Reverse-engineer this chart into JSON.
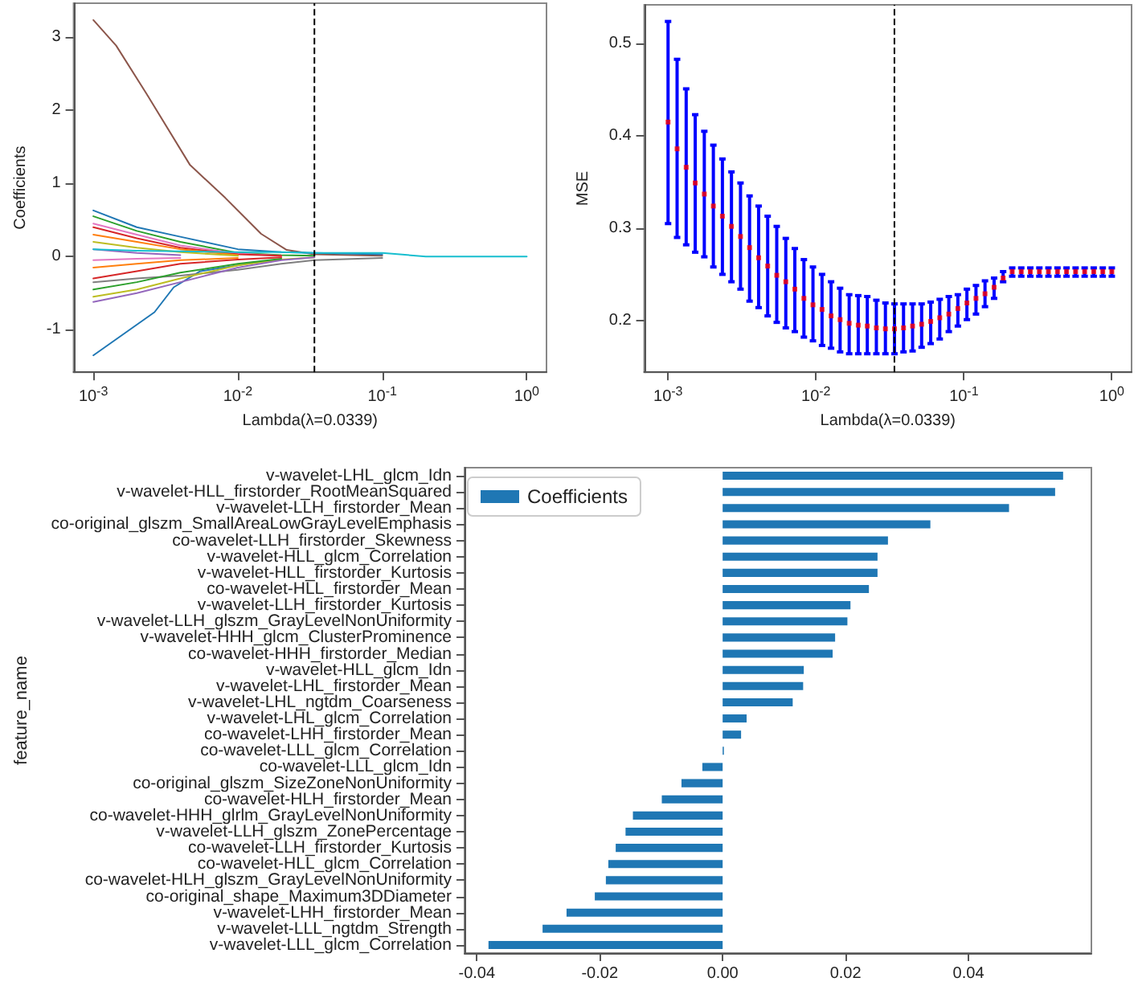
{
  "chart_data": [
    {
      "type": "line",
      "xlabel": "Lambda(λ=0.0339)",
      "ylabel": "Coefficients",
      "log": "x",
      "xlim": [
        0.00073,
        1.37
      ],
      "xticks": [
        {
          "value": 0.001,
          "label": "10$^{-3}$"
        },
        {
          "value": 0.01,
          "label": "10$^{-2}$"
        },
        {
          "value": 0.1,
          "label": "10$^{-1}$"
        },
        {
          "value": 1,
          "label": "10$^{0}$"
        }
      ],
      "ylim": [
        -1.58,
        3.46
      ],
      "yticks": [
        -1,
        0,
        1,
        2,
        3
      ],
      "x": [
        0.001,
        0.002,
        0.004,
        0.01,
        0.02,
        0.0339,
        0.1,
        0.2,
        1
      ],
      "series": [
        {
          "color": "#8c564b",
          "x": [
            0.001,
            0.00144,
            0.00234,
            0.00467,
            0.0082,
            0.0145,
            0.0218,
            0.0339,
            0.1
          ],
          "values": [
            3.23,
            2.88,
            2.22,
            1.25,
            0.8,
            0.31,
            0.09,
            0.03,
            0.01
          ]
        },
        {
          "color": "#1f77b4",
          "x": [
            0.001,
            0.00265,
            0.0036,
            0.0055,
            0.0145
          ],
          "values": [
            -1.35,
            -0.76,
            -0.42,
            -0.2,
            -0.07
          ]
        },
        {
          "color": "#1f77b4",
          "values": [
            0.63,
            0.4,
            0.27,
            0.1,
            0.06,
            0.05,
            0.03,
            null,
            null
          ]
        },
        {
          "color": "#2ca02c",
          "values": [
            0.55,
            0.35,
            0.2,
            0.05,
            0.02,
            0.01,
            null,
            null,
            null
          ]
        },
        {
          "color": "#e377c2",
          "values": [
            0.45,
            0.3,
            0.15,
            0.04,
            0.01,
            null,
            null,
            null,
            null
          ]
        },
        {
          "color": "#d62728",
          "values": [
            0.4,
            0.25,
            0.12,
            0.03,
            0.01,
            null,
            null,
            null,
            null
          ]
        },
        {
          "color": "#ff7f0e",
          "values": [
            0.3,
            0.2,
            0.1,
            0.02,
            null,
            null,
            null,
            null,
            null
          ]
        },
        {
          "color": "#bcbd22",
          "values": [
            0.2,
            0.12,
            0.06,
            0.01,
            null,
            null,
            null,
            null,
            null
          ]
        },
        {
          "color": "#9467bd",
          "values": [
            0.1,
            0.05,
            0.02,
            null,
            null,
            null,
            null,
            null,
            null
          ]
        },
        {
          "color": "#7f7f7f",
          "values": [
            -0.35,
            -0.3,
            -0.26,
            -0.18,
            -0.1,
            -0.05,
            -0.02,
            null,
            null
          ]
        },
        {
          "color": "#bcbd22",
          "values": [
            -0.55,
            -0.45,
            -0.3,
            -0.12,
            -0.04,
            -0.01,
            null,
            null,
            null
          ]
        },
        {
          "color": "#9467bd",
          "values": [
            -0.62,
            -0.5,
            -0.35,
            -0.15,
            -0.05,
            -0.01,
            null,
            null,
            null
          ]
        },
        {
          "color": "#2ca02c",
          "values": [
            -0.45,
            -0.35,
            -0.22,
            -0.1,
            -0.03,
            null,
            null,
            null,
            null
          ]
        },
        {
          "color": "#d62728",
          "values": [
            -0.3,
            -0.2,
            -0.1,
            -0.04,
            -0.01,
            null,
            null,
            null,
            null
          ]
        },
        {
          "color": "#ff7f0e",
          "values": [
            -0.15,
            -0.1,
            -0.05,
            -0.02,
            null,
            null,
            null,
            null,
            null
          ]
        },
        {
          "color": "#e377c2",
          "values": [
            -0.05,
            -0.03,
            -0.02,
            null,
            null,
            null,
            null,
            null,
            null
          ]
        },
        {
          "color": "#17becf",
          "values": [
            0.1,
            0.08,
            0.07,
            0.06,
            0.06,
            0.05,
            0.05,
            0,
            0
          ]
        }
      ],
      "ref_lines": [
        {
          "axis": "x",
          "value": 0.0339,
          "color": "#000000",
          "line_style": "dashed"
        }
      ]
    },
    {
      "type": "scatter",
      "xlabel": "Lambda(λ=0.0339)",
      "ylabel": "MSE",
      "log": "x",
      "marker": "square",
      "color": "#ff0000",
      "xlim": [
        0.00069,
        1.36
      ],
      "xticks": [
        {
          "value": 0.001,
          "label": "10$^{-3}$"
        },
        {
          "value": 0.01,
          "label": "10$^{-2}$"
        },
        {
          "value": 0.1,
          "label": "10$^{-1}$"
        },
        {
          "value": 1,
          "label": "10$^{0}$"
        }
      ],
      "ylim": [
        0.144,
        0.542
      ],
      "yticks": [
        0.2,
        0.3,
        0.4,
        0.5
      ],
      "x": [
        0.001,
        0.001151,
        0.001326,
        0.001526,
        0.001758,
        0.002024,
        0.00233,
        0.002683,
        0.003089,
        0.003556,
        0.004095,
        0.004715,
        0.005429,
        0.006251,
        0.007197,
        0.008286,
        0.009541,
        0.01099,
        0.01265,
        0.01456,
        0.01677,
        0.01931,
        0.02223,
        0.0256,
        0.02947,
        0.03393,
        0.03907,
        0.04498,
        0.05179,
        0.05964,
        0.06866,
        0.07906,
        0.09103,
        0.1048,
        0.1207,
        0.1389,
        0.16,
        0.1842,
        0.2121,
        0.2442,
        0.2812,
        0.3237,
        0.3728,
        0.4292,
        0.4942,
        0.569,
        0.6551,
        0.7543,
        0.8685,
        1
      ],
      "values": [
        0.415,
        0.386,
        0.366,
        0.349,
        0.337,
        0.324,
        0.313,
        0.302,
        0.291,
        0.279,
        0.268,
        0.259,
        0.249,
        0.242,
        0.234,
        0.224,
        0.217,
        0.212,
        0.205,
        0.201,
        0.197,
        0.195,
        0.194,
        0.192,
        0.191,
        0.191,
        0.192,
        0.194,
        0.196,
        0.199,
        0.203,
        0.207,
        0.213,
        0.219,
        0.224,
        0.229,
        0.236,
        0.246,
        0.253,
        0.253,
        0.253,
        0.253,
        0.253,
        0.253,
        0.253,
        0.253,
        0.253,
        0.253,
        0.253,
        0.253
      ],
      "errors": [
        [
          0.305,
          0.524
        ],
        [
          0.29,
          0.483
        ],
        [
          0.282,
          0.451
        ],
        [
          0.274,
          0.423
        ],
        [
          0.269,
          0.405
        ],
        [
          0.258,
          0.39
        ],
        [
          0.25,
          0.375
        ],
        [
          0.242,
          0.361
        ],
        [
          0.234,
          0.349
        ],
        [
          0.221,
          0.335
        ],
        [
          0.214,
          0.324
        ],
        [
          0.205,
          0.313
        ],
        [
          0.198,
          0.302
        ],
        [
          0.192,
          0.289
        ],
        [
          0.188,
          0.278
        ],
        [
          0.182,
          0.266
        ],
        [
          0.178,
          0.258
        ],
        [
          0.173,
          0.25
        ],
        [
          0.17,
          0.242
        ],
        [
          0.166,
          0.235
        ],
        [
          0.164,
          0.228
        ],
        [
          0.164,
          0.227
        ],
        [
          0.164,
          0.226
        ],
        [
          0.164,
          0.222
        ],
        [
          0.164,
          0.219
        ],
        [
          0.164,
          0.218
        ],
        [
          0.166,
          0.218
        ],
        [
          0.167,
          0.218
        ],
        [
          0.171,
          0.218
        ],
        [
          0.175,
          0.22
        ],
        [
          0.18,
          0.223
        ],
        [
          0.188,
          0.226
        ],
        [
          0.194,
          0.228
        ],
        [
          0.201,
          0.234
        ],
        [
          0.207,
          0.238
        ],
        [
          0.215,
          0.243
        ],
        [
          0.224,
          0.246
        ],
        [
          0.242,
          0.253
        ],
        [
          0.248,
          0.257
        ],
        [
          0.248,
          0.257
        ],
        [
          0.248,
          0.257
        ],
        [
          0.248,
          0.257
        ],
        [
          0.248,
          0.257
        ],
        [
          0.248,
          0.257
        ],
        [
          0.248,
          0.257
        ],
        [
          0.248,
          0.257
        ],
        [
          0.248,
          0.257
        ],
        [
          0.248,
          0.257
        ],
        [
          0.248,
          0.257
        ],
        [
          0.248,
          0.257
        ]
      ],
      "ref_lines": [
        {
          "axis": "x",
          "value": 0.0339,
          "color": "#000000",
          "line_style": "dashed"
        }
      ]
    },
    {
      "type": "bar",
      "orientation": "horizontal",
      "ylabel": "feature_name",
      "legend": "top left",
      "xlim": [
        -0.042,
        0.06
      ],
      "xticks": [
        -0.04,
        -0.02,
        {
          "value": 0,
          "label": "0.00"
        },
        0.02,
        0.04
      ],
      "categories": [
        "v-wavelet-LHL_glcm_Idn",
        "v-wavelet-HLL_firstorder_RootMeanSquared",
        "v-wavelet-LLH_firstorder_Mean",
        "co-original_glszm_SmallAreaLowGrayLevelEmphasis",
        "co-wavelet-LLH_firstorder_Skewness",
        "v-wavelet-HLL_glcm_Correlation",
        "v-wavelet-HLL_firstorder_Kurtosis",
        "co-wavelet-HLL_firstorder_Mean",
        "v-wavelet-LLH_firstorder_Kurtosis",
        "v-wavelet-LLH_glszm_GrayLevelNonUniformity",
        "v-wavelet-HHH_glcm_ClusterProminence",
        "co-wavelet-HHH_firstorder_Median",
        "v-wavelet-HLL_glcm_Idn",
        "v-wavelet-LHL_firstorder_Mean",
        "v-wavelet-LHL_ngtdm_Coarseness",
        "v-wavelet-LHL_glcm_Correlation",
        "co-wavelet-LHH_firstorder_Mean",
        "co-wavelet-LLL_glcm_Correlation",
        "co-wavelet-LLL_glcm_Idn",
        "co-original_glszm_SizeZoneNonUniformity",
        "co-wavelet-HLH_firstorder_Mean",
        "co-wavelet-HHH_glrlm_GrayLevelNonUniformity",
        "v-wavelet-LLH_glszm_ZonePercentage",
        "co-wavelet-LLH_firstorder_Kurtosis",
        "co-wavelet-HLL_glcm_Correlation",
        "co-wavelet-HLH_glszm_GrayLevelNonUniformity",
        "co-original_shape_Maximum3DDiameter",
        "v-wavelet-LHH_firstorder_Mean",
        "v-wavelet-LLL_ngtdm_Strength",
        "v-wavelet-LLL_glcm_Correlation"
      ],
      "series": [
        {
          "name": "Coefficients",
          "color": "#1f77b4",
          "values": [
            0.0554,
            0.0541,
            0.0466,
            0.0338,
            0.0269,
            0.0252,
            0.0252,
            0.0238,
            0.0208,
            0.0203,
            0.0183,
            0.0179,
            0.0132,
            0.0131,
            0.0114,
            0.0039,
            0.003,
            0.0002,
            -0.0033,
            -0.0067,
            -0.0099,
            -0.0146,
            -0.0158,
            -0.0174,
            -0.0186,
            -0.019,
            -0.0208,
            -0.0254,
            -0.0293,
            -0.0381
          ]
        }
      ]
    }
  ]
}
